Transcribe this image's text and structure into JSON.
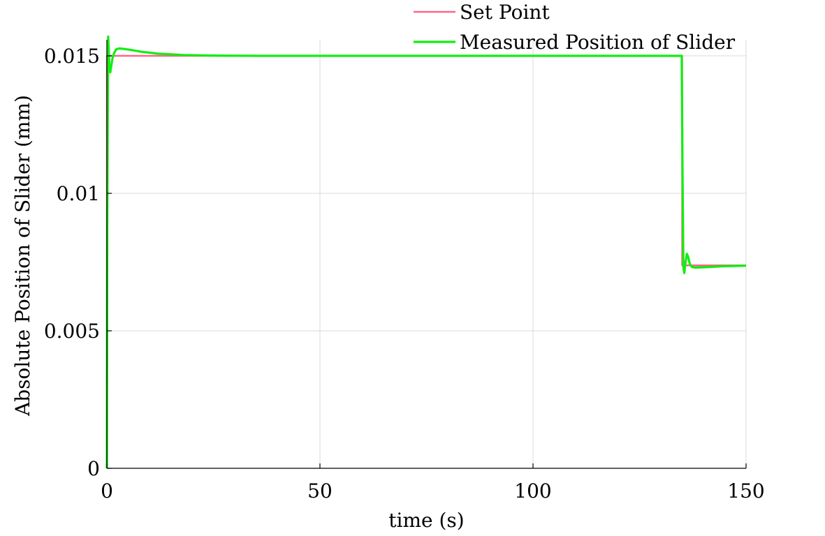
{
  "chart_data": {
    "type": "line",
    "title": "",
    "xlabel": "time (s)",
    "ylabel": "Absolute Position of Slider (mm)",
    "xlim": [
      0,
      150
    ],
    "ylim": [
      0,
      0.0155
    ],
    "xticks": [
      0,
      50,
      100,
      150
    ],
    "xtick_labels": [
      "0",
      "50",
      "100",
      "150"
    ],
    "yticks": [
      0,
      0.005,
      0.01,
      0.015
    ],
    "ytick_labels": [
      "0",
      "0.005",
      "0.01",
      "0.015"
    ],
    "grid": true,
    "legend_position": "top-right",
    "series": [
      {
        "name": "Set Point",
        "color": "#ff6688",
        "x": [
          0,
          0.01,
          135,
          135.01,
          150
        ],
        "y": [
          0,
          0.015,
          0.015,
          0.00738,
          0.00738
        ]
      },
      {
        "name": "Measured Position of Slider",
        "color": "#11ee11",
        "x": [
          0,
          0.1,
          0.3,
          0.45,
          0.6,
          0.8,
          1.0,
          1.3,
          1.7,
          2.2,
          3,
          5,
          8,
          12,
          18,
          25,
          35,
          50,
          80,
          110,
          134.9,
          135.1,
          135.3,
          135.5,
          135.8,
          136.1,
          136.4,
          136.8,
          137.3,
          138,
          140,
          145,
          150
        ],
        "y": [
          0,
          0.009,
          0.0157,
          0.0152,
          0.0145,
          0.0144,
          0.0146,
          0.0149,
          0.0151,
          0.01524,
          0.01527,
          0.01523,
          0.01515,
          0.01508,
          0.01503,
          0.01501,
          0.015,
          0.015,
          0.015,
          0.015,
          0.015,
          0.0105,
          0.0073,
          0.0071,
          0.0075,
          0.0078,
          0.0077,
          0.00743,
          0.00732,
          0.0073,
          0.00731,
          0.00735,
          0.00737
        ]
      }
    ]
  }
}
